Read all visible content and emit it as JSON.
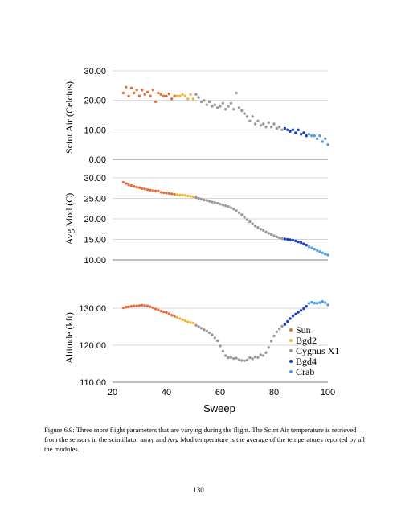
{
  "caption": "Figure 6.9: Three more flight parameters that are varying during the flight. The Scint Air temperature is retrieved from the sensors in the scintillator array and Avg Mod temperature is the average of the temperatures reported by all the modules.",
  "page_number": "130",
  "colors": {
    "Sun": "#e0703c",
    "Bgd2": "#f5b43a",
    "Cygnus X1": "#9a9a9a",
    "Bgd4": "#1a3fc4",
    "Crab": "#4f9ede"
  },
  "chart_data": [
    {
      "type": "scatter",
      "ylabel": "Scint Air (Celcius)",
      "ylim": [
        0,
        30
      ],
      "yticks": [
        "0.00",
        "10.00",
        "20.00",
        "30.00"
      ],
      "xlim": [
        20,
        100
      ],
      "grid": true,
      "series": [
        {
          "name": "Sun",
          "x": [
            24,
            25,
            26,
            27,
            28,
            29,
            30,
            31,
            32,
            33,
            34,
            35,
            36,
            37,
            38,
            39,
            40,
            41,
            42,
            43
          ],
          "y": [
            22.5,
            24.5,
            21.5,
            24.2,
            22.5,
            23.5,
            21.5,
            23.5,
            22,
            22.8,
            21.5,
            23.5,
            19.5,
            22.5,
            22,
            21.5,
            21.5,
            22.2,
            20.5,
            21.5
          ]
        },
        {
          "name": "Bgd2",
          "x": [
            44,
            45,
            46,
            47,
            48,
            49,
            50
          ],
          "y": [
            21.5,
            21.5,
            22,
            21.5,
            20.5,
            22,
            20.5
          ]
        },
        {
          "name": "Cygnus X1",
          "x": [
            51,
            52,
            53,
            54,
            55,
            56,
            57,
            58,
            59,
            60,
            61,
            62,
            63,
            64,
            65,
            66,
            67,
            68,
            69,
            70,
            71,
            72,
            73,
            74,
            75,
            76,
            77,
            78,
            79,
            80,
            81,
            82,
            83
          ],
          "y": [
            22,
            21,
            19.5,
            20,
            18.5,
            19.5,
            18,
            18.5,
            17.5,
            18,
            19,
            17,
            18,
            19,
            17,
            22.5,
            17.5,
            16.5,
            15.5,
            14.5,
            13,
            14.5,
            12,
            13,
            11.5,
            12,
            11,
            12.5,
            11,
            12,
            10.5,
            11,
            10
          ]
        },
        {
          "name": "Bgd4",
          "x": [
            84,
            85,
            86,
            87,
            88,
            89,
            90,
            91,
            92
          ],
          "y": [
            10.5,
            10,
            9.5,
            10,
            9,
            10,
            8.5,
            9,
            8
          ]
        },
        {
          "name": "Crab",
          "x": [
            93,
            94,
            95,
            96,
            97,
            98,
            99,
            100
          ],
          "y": [
            8.5,
            8,
            8,
            7,
            8,
            6,
            7,
            5
          ]
        }
      ]
    },
    {
      "type": "scatter",
      "ylabel": "Avg Mod (C)",
      "ylim": [
        10,
        30
      ],
      "yticks": [
        "10.00",
        "15.00",
        "20.00",
        "25.00",
        "30.00"
      ],
      "xlim": [
        20,
        100
      ],
      "grid": true,
      "series": [
        {
          "name": "Sun",
          "x": [
            24,
            25,
            26,
            27,
            28,
            29,
            30,
            31,
            32,
            33,
            34,
            35,
            36,
            37,
            38,
            39,
            40,
            41,
            42,
            43
          ],
          "y": [
            28.9,
            28.6,
            28.3,
            28.1,
            27.9,
            27.7,
            27.6,
            27.4,
            27.3,
            27.1,
            27,
            26.9,
            26.8,
            26.8,
            26.5,
            26.4,
            26.3,
            26.2,
            26.1,
            26
          ]
        },
        {
          "name": "Bgd2",
          "x": [
            44,
            45,
            46,
            47,
            48,
            49,
            50
          ],
          "y": [
            25.9,
            25.8,
            25.8,
            25.7,
            25.6,
            25.5,
            25.4
          ]
        },
        {
          "name": "Cygnus X1",
          "x": [
            51,
            52,
            53,
            54,
            55,
            56,
            57,
            58,
            59,
            60,
            61,
            62,
            63,
            64,
            65,
            66,
            67,
            68,
            69,
            70,
            71,
            72,
            73,
            74,
            75,
            76,
            77,
            78,
            79,
            80,
            81,
            82,
            83
          ],
          "y": [
            25.2,
            25,
            24.8,
            24.6,
            24.5,
            24.3,
            24.1,
            24,
            23.8,
            23.6,
            23.4,
            23.2,
            23,
            22.7,
            22.4,
            22,
            21.5,
            21,
            20.4,
            19.8,
            19.3,
            18.8,
            18.3,
            17.9,
            17.5,
            17.2,
            16.8,
            16.5,
            16.2,
            15.9,
            15.6,
            15.4,
            15.2
          ]
        },
        {
          "name": "Bgd4",
          "x": [
            84,
            85,
            86,
            87,
            88,
            89,
            90,
            91,
            92
          ],
          "y": [
            15.1,
            15,
            14.9,
            14.8,
            14.6,
            14.4,
            14.2,
            13.9,
            13.6
          ]
        },
        {
          "name": "Crab",
          "x": [
            93,
            94,
            95,
            96,
            97,
            98,
            99,
            100
          ],
          "y": [
            13.2,
            12.9,
            12.6,
            12.3,
            12,
            11.7,
            11.4,
            11.2
          ]
        }
      ]
    },
    {
      "type": "scatter",
      "ylabel": "Altitude (kft)",
      "xlabel": "Sweep",
      "ylim": [
        110,
        135
      ],
      "yticks": [
        "110.00",
        "120.00",
        "130.00"
      ],
      "xticks": [
        "20",
        "40",
        "60",
        "80",
        "100"
      ],
      "xlim": [
        20,
        100
      ],
      "grid": true,
      "legend": "right",
      "series": [
        {
          "name": "Sun",
          "x": [
            24,
            25,
            26,
            27,
            28,
            29,
            30,
            31,
            32,
            33,
            34,
            35,
            36,
            37,
            38,
            39,
            40,
            41,
            42,
            43
          ],
          "y": [
            130.1,
            130.3,
            130.4,
            130.5,
            130.6,
            130.6,
            130.7,
            130.8,
            130.7,
            130.6,
            130.4,
            130.1,
            129.8,
            129.5,
            129.2,
            129,
            128.8,
            128.5,
            128.1,
            127.8
          ]
        },
        {
          "name": "Bgd2",
          "x": [
            44,
            45,
            46,
            47,
            48,
            49,
            50
          ],
          "y": [
            127.5,
            127.2,
            126.9,
            126.6,
            126.3,
            126.1,
            126
          ]
        },
        {
          "name": "Cygnus X1",
          "x": [
            51,
            52,
            53,
            54,
            55,
            56,
            57,
            58,
            59,
            60,
            61,
            62,
            63,
            64,
            65,
            66,
            67,
            68,
            69,
            70,
            71,
            72,
            73,
            74,
            75,
            76,
            77,
            78,
            79,
            80,
            81,
            82,
            83
          ],
          "y": [
            125.4,
            125,
            124.6,
            124.2,
            123.8,
            123.4,
            122.8,
            122,
            121.2,
            119.8,
            118.4,
            117.2,
            116.6,
            116.7,
            116.4,
            116.5,
            116.1,
            115.9,
            115.8,
            116,
            116.6,
            116.3,
            116.8,
            116.7,
            117.4,
            117.2,
            118,
            119.4,
            121.1,
            122.5,
            123.6,
            124.4,
            125.1
          ]
        },
        {
          "name": "Bgd4",
          "x": [
            84,
            85,
            86,
            87,
            88,
            89,
            90,
            91,
            92
          ],
          "y": [
            125.6,
            126.4,
            127.2,
            127.9,
            128.4,
            128.9,
            129.4,
            129.9,
            130.5
          ]
        },
        {
          "name": "Crab",
          "x": [
            93,
            94,
            95,
            96,
            97,
            98,
            99,
            100
          ],
          "y": [
            131.3,
            131.6,
            131.4,
            131.3,
            131.5,
            131.8,
            131.5,
            130.9
          ]
        }
      ]
    }
  ]
}
